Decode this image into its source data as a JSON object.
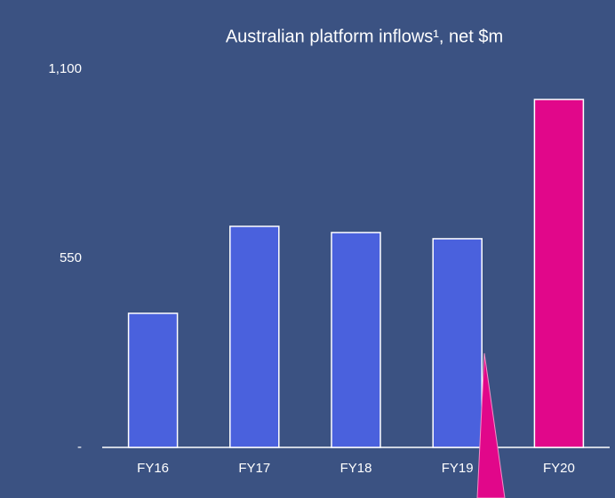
{
  "chart_data": {
    "type": "bar",
    "title": "Australian platform inflows¹, net $m",
    "categories": [
      "FY16",
      "FY17",
      "FY18",
      "FY19",
      "FY20"
    ],
    "values": [
      390,
      643,
      625,
      607,
      1012
    ],
    "colors": [
      "#4a61dd",
      "#4a61dd",
      "#4a61dd",
      "#4a61dd",
      "#e1078a"
    ],
    "ylim": [
      0,
      1100
    ],
    "yticks": [
      {
        "value": 0,
        "label": "-"
      },
      550,
      {
        "value": 1100,
        "label": "1,100"
      }
    ],
    "grid": false
  }
}
